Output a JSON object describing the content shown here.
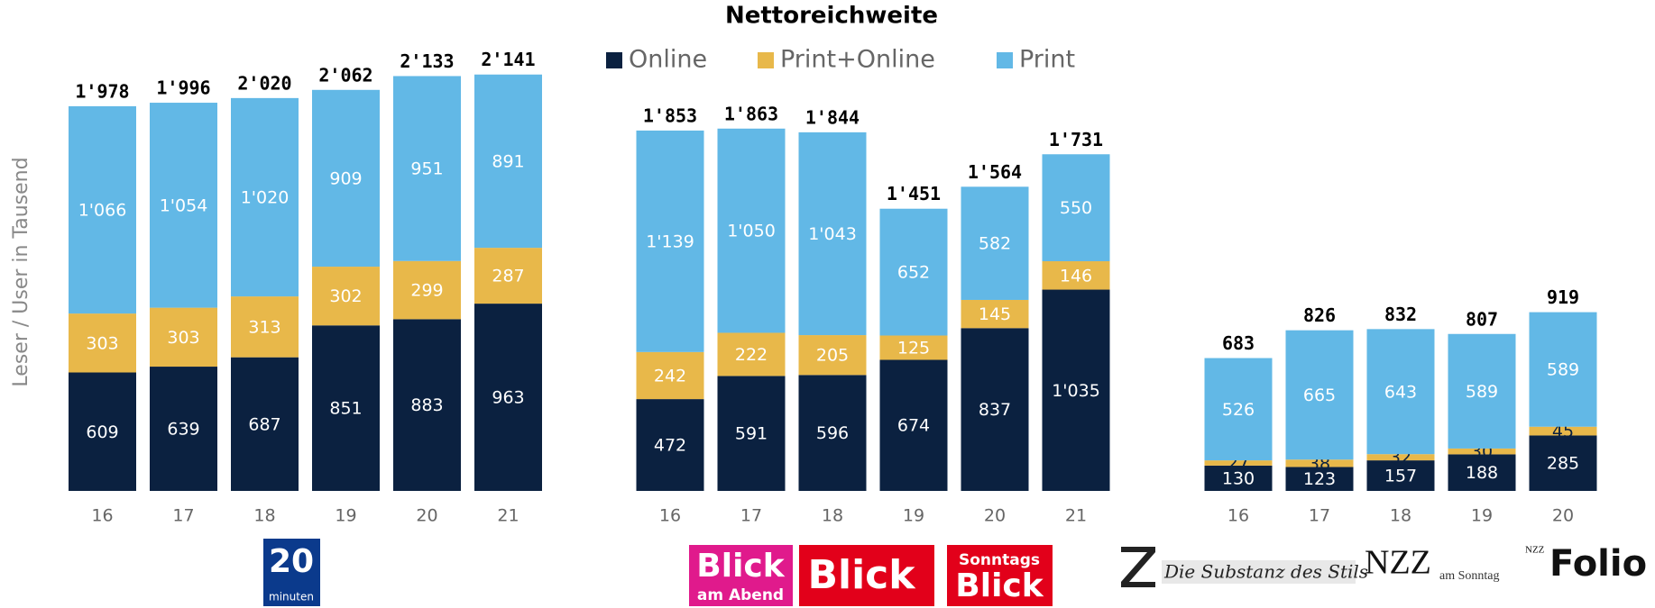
{
  "chart_data": {
    "type": "bar",
    "stacked": true,
    "title": "Nettoreichweite",
    "ylabel": "Leser / User in Tausend",
    "legend": [
      {
        "name": "Online",
        "color": "#0b2140"
      },
      {
        "name": "Print+Online",
        "color": "#e8b84a"
      },
      {
        "name": "Print",
        "color": "#62b8e6"
      }
    ],
    "ylim": [
      0,
      2200
    ],
    "panels": [
      {
        "categories": [
          "16",
          "17",
          "18",
          "19",
          "20",
          "21"
        ],
        "series": [
          {
            "values": [
              609,
              639,
              687,
              851,
              883,
              963
            ]
          },
          {
            "values": [
              303,
              303,
              313,
              302,
              299,
              287
            ]
          },
          {
            "values": [
              1066,
              1054,
              1020,
              909,
              951,
              891
            ],
            "value_labels": [
              "1'066",
              "1'054",
              "1'020",
              "909",
              "951",
              "891"
            ]
          }
        ],
        "totals": {
          "values": [
            1978,
            1996,
            2020,
            2062,
            2133,
            2141
          ],
          "value_labels": [
            "1'978",
            "1'996",
            "2'020",
            "2'062",
            "2'133",
            "2'141"
          ]
        },
        "logos": [
          "20",
          "minuten"
        ]
      },
      {
        "categories": [
          "16",
          "17",
          "18",
          "19",
          "20",
          "21"
        ],
        "series": [
          {
            "values": [
              472,
              591,
              596,
              674,
              837,
              1035
            ],
            "value_labels": [
              "472",
              "591",
              "596",
              "674",
              "837",
              "1'035"
            ]
          },
          {
            "values": [
              242,
              222,
              205,
              125,
              145,
              146
            ]
          },
          {
            "values": [
              1139,
              1050,
              1043,
              652,
              582,
              550
            ],
            "value_labels": [
              "1'139",
              "1'050",
              "1'043",
              "652",
              "582",
              "550"
            ]
          }
        ],
        "totals": {
          "values": [
            1853,
            1863,
            1844,
            1451,
            1564,
            1731
          ],
          "value_labels": [
            "1'853",
            "1'863",
            "1'844",
            "1'451",
            "1'564",
            "1'731"
          ]
        },
        "logos": [
          "Blick",
          "am Abend",
          "Blick",
          "Sonntags",
          "Blick"
        ]
      },
      {
        "categories": [
          "16",
          "17",
          "18",
          "19",
          "20"
        ],
        "series": [
          {
            "values": [
              130,
              123,
              157,
              188,
              285
            ]
          },
          {
            "values": [
              27,
              38,
              32,
              30,
              45
            ]
          },
          {
            "values": [
              526,
              665,
              643,
              589,
              589
            ]
          }
        ],
        "totals": {
          "values": [
            683,
            826,
            832,
            807,
            919
          ]
        },
        "logos": [
          "Die Substanz des Stils",
          "NZZ",
          "am Sonntag",
          "NZZ",
          "Folio"
        ]
      }
    ]
  }
}
